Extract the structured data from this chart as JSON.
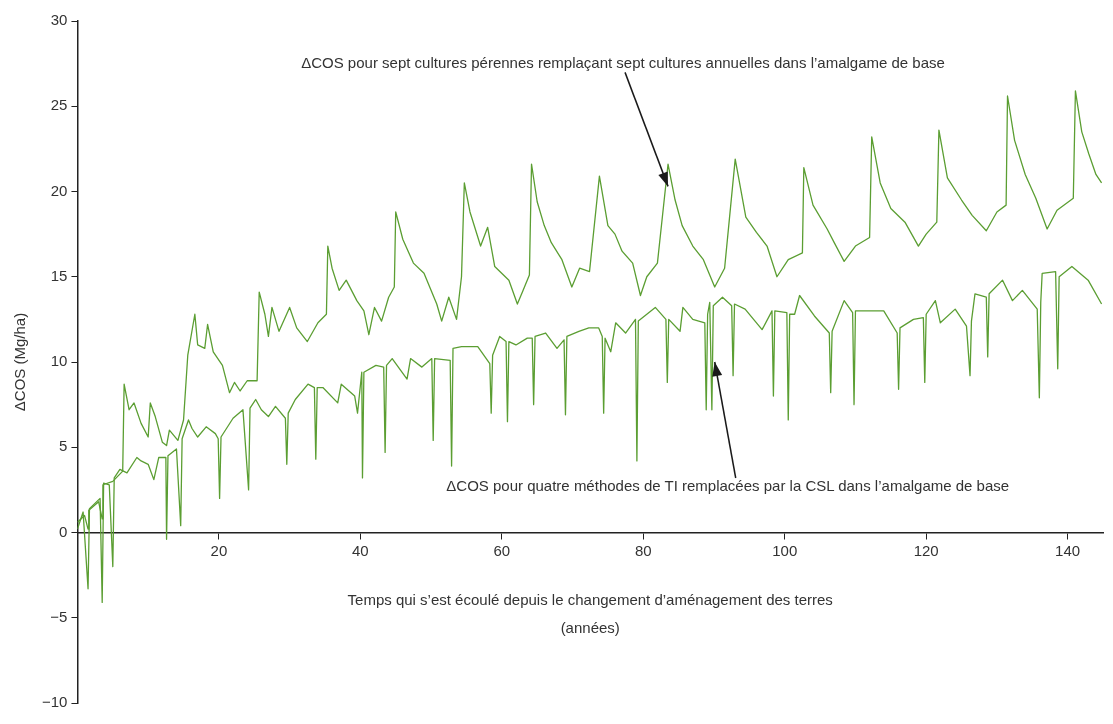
{
  "chart_data": {
    "type": "line",
    "ylabel": "ΔCOS (Mg/ha)",
    "xlabel": "Temps qui s’est écoulé depuis le changement d’aménagement des terres\n(années)",
    "xlim": [
      0,
      145
    ],
    "xticks": [
      20,
      40,
      60,
      80,
      100,
      120,
      140
    ],
    "ylim": [
      -10,
      30
    ],
    "yticks": [
      {
        "value": -10,
        "label": "−10"
      },
      {
        "value": -5,
        "label": "−5"
      },
      0,
      5,
      10,
      15,
      20,
      25,
      30
    ],
    "grid": false,
    "legend": false,
    "marker": "none",
    "annotations": [
      {
        "text": "ΔCOS pour sept cultures pérennes remplaçant sept cultures annuelles dans l’amalgame de base",
        "x": 83.5,
        "y": 20.3
      },
      {
        "text": "ΔCOS pour quatre méthodes de TI remplacées par la CSL dans l’amalgame de base",
        "x": 90.1,
        "y": 10.0
      }
    ],
    "series": [
      {
        "color": "#5b9e32",
        "x": [
          0,
          1,
          1.5,
          1.6,
          3,
          3.5,
          3.6,
          5,
          6.4,
          6.6,
          7.3,
          8,
          9,
          10,
          10.3,
          11,
          12,
          12.6,
          13,
          14.2,
          15,
          15.6,
          16.6,
          17,
          18,
          18.4,
          19.2,
          20.5,
          21.5,
          22.2,
          23,
          24,
          25.4,
          25.7,
          26.5,
          27,
          27.5,
          28.5,
          30,
          31,
          32.5,
          34,
          35.2,
          35.4,
          36,
          37,
          38,
          39.5,
          40.5,
          41.2,
          42,
          43,
          44,
          44.8,
          45,
          46,
          47.5,
          49,
          50.8,
          51.5,
          52.5,
          53.6,
          54.3,
          54.7,
          55.5,
          57,
          58,
          59,
          61,
          62.2,
          63,
          63.9,
          64.2,
          65,
          66,
          67,
          68.5,
          69.9,
          71,
          72.4,
          73.8,
          75,
          76,
          77,
          78.5,
          79.6,
          80.5,
          82,
          83.5,
          84.5,
          85.5,
          87,
          88.5,
          90.1,
          91.5,
          93,
          94.5,
          96,
          97.5,
          98.9,
          100.5,
          102.5,
          102.7,
          104,
          106,
          107,
          108.4,
          110,
          112,
          112.3,
          113.5,
          115,
          117,
          118.9,
          120,
          121.5,
          121.8,
          123,
          125,
          126.5,
          128.5,
          130,
          131.3,
          131.5,
          132.5,
          134,
          135.5,
          137.1,
          138.5,
          140.8,
          141.1,
          142,
          143,
          144,
          144.8
        ],
        "values": [
          0.6,
          1.0,
          0.2,
          1.3,
          1.8,
          0.8,
          2.8,
          3.0,
          3.6,
          8.7,
          7.2,
          7.6,
          6.4,
          5.6,
          7.6,
          6.8,
          5.3,
          5.1,
          6.0,
          5.4,
          6.6,
          10.4,
          12.8,
          11.0,
          10.8,
          12.2,
          10.6,
          9.8,
          8.2,
          8.8,
          8.3,
          8.9,
          8.9,
          14.1,
          12.8,
          11.5,
          13.2,
          11.8,
          13.2,
          12.0,
          11.2,
          12.3,
          12.8,
          16.8,
          15.5,
          14.2,
          14.8,
          13.6,
          13.0,
          11.6,
          13.2,
          12.4,
          13.8,
          14.4,
          18.8,
          17.2,
          15.8,
          15.2,
          13.4,
          12.4,
          13.8,
          12.5,
          15.0,
          20.5,
          18.8,
          16.8,
          17.9,
          15.6,
          14.8,
          13.4,
          14.2,
          15.1,
          21.6,
          19.4,
          18.0,
          17.0,
          16.0,
          14.4,
          15.5,
          15.3,
          20.9,
          18.0,
          17.5,
          16.5,
          15.8,
          13.9,
          15.0,
          15.8,
          21.6,
          19.5,
          18.0,
          16.8,
          16.0,
          14.4,
          15.5,
          21.9,
          18.5,
          17.6,
          16.8,
          15.0,
          16.0,
          16.4,
          21.4,
          19.2,
          17.8,
          17.0,
          15.9,
          16.8,
          17.3,
          23.2,
          20.5,
          19.0,
          18.2,
          16.8,
          17.5,
          18.2,
          23.6,
          20.8,
          19.5,
          18.6,
          17.7,
          18.8,
          19.2,
          25.6,
          23.0,
          21.0,
          19.6,
          17.8,
          18.9,
          19.6,
          25.9,
          23.5,
          22.2,
          21.0,
          20.5
        ]
      },
      {
        "color": "#5b9e32",
        "x": [
          0,
          0.8,
          1.5,
          1.7,
          3.2,
          3.5,
          3.7,
          4.5,
          5,
          5.2,
          6,
          7,
          8.4,
          9,
          10,
          10.8,
          11.5,
          12.5,
          12.6,
          12.8,
          14,
          14.6,
          14.8,
          15.7,
          16.2,
          17,
          18.2,
          19.5,
          19.9,
          20.1,
          20.3,
          22,
          23.4,
          24.2,
          24.4,
          25.2,
          26,
          27,
          28,
          29.4,
          29.6,
          29.8,
          30.8,
          32.6,
          33.5,
          33.7,
          33.9,
          34.7,
          36.8,
          37.3,
          39.2,
          39.6,
          40.2,
          40.3,
          40.5,
          42.2,
          43.3,
          43.5,
          43.7,
          44.5,
          46.6,
          47.1,
          48.7,
          50.1,
          50.3,
          50.5,
          52.7,
          52.9,
          53.1,
          54.3,
          56.6,
          58.3,
          58.5,
          58.7,
          59.7,
          60.6,
          60.8,
          61,
          62,
          63.6,
          64.3,
          64.5,
          64.7,
          66.2,
          67.8,
          68.8,
          69,
          69.2,
          70.9,
          72.3,
          73.7,
          74.2,
          74.4,
          74.6,
          75.4,
          76.1,
          77.5,
          78.9,
          79.1,
          79.3,
          81.7,
          83.2,
          83.4,
          83.6,
          85.2,
          85.6,
          87,
          88.7,
          88.9,
          89.1,
          89.4,
          89.7,
          89.9,
          91.2,
          92.5,
          92.7,
          92.9,
          94.4,
          96.8,
          98.2,
          98.4,
          98.6,
          100.3,
          100.5,
          100.7,
          101.4,
          102.1,
          104.2,
          106.3,
          106.5,
          106.7,
          108.4,
          109.6,
          109.8,
          110,
          110.3,
          114,
          115.9,
          116.1,
          116.3,
          118.2,
          119.6,
          119.8,
          120,
          121.3,
          122,
          124.1,
          125.7,
          126.2,
          126.4,
          126.9,
          128.5,
          128.7,
          128.9,
          130.8,
          132.2,
          133.6,
          135.7,
          136,
          136.2,
          136.4,
          138.3,
          138.6,
          138.8,
          140.6,
          142.9,
          144.8
        ],
        "values": [
          0.2,
          1.2,
          -3.3,
          1.4,
          2.0,
          -4.1,
          2.9,
          2.8,
          -2.0,
          3.2,
          3.7,
          3.5,
          4.4,
          4.2,
          4.0,
          3.1,
          4.4,
          4.4,
          -0.4,
          4.5,
          4.9,
          0.4,
          5.5,
          6.6,
          6.1,
          5.6,
          6.2,
          5.8,
          5.5,
          2.0,
          5.6,
          6.7,
          7.2,
          2.5,
          7.3,
          7.8,
          7.2,
          6.8,
          7.4,
          6.7,
          4.0,
          7.0,
          7.8,
          8.7,
          8.5,
          4.3,
          8.5,
          8.5,
          7.6,
          8.7,
          8.0,
          7.0,
          9.4,
          3.2,
          9.4,
          9.8,
          9.7,
          4.7,
          9.8,
          10.2,
          9.0,
          10.2,
          9.7,
          10.2,
          5.4,
          10.2,
          10.1,
          3.9,
          10.8,
          10.9,
          10.9,
          9.9,
          7.0,
          10.4,
          11.5,
          11.2,
          6.5,
          11.2,
          11.0,
          11.4,
          11.4,
          7.5,
          11.5,
          11.7,
          10.8,
          11.3,
          6.9,
          11.5,
          11.8,
          12.0,
          12.0,
          11.5,
          7.0,
          11.4,
          10.6,
          12.3,
          11.7,
          12.5,
          4.2,
          12.4,
          13.2,
          12.5,
          8.8,
          12.5,
          11.8,
          13.2,
          12.5,
          12.3,
          7.2,
          12.8,
          13.5,
          7.2,
          13.3,
          13.8,
          13.3,
          9.2,
          13.4,
          13.1,
          11.9,
          13.0,
          8.0,
          13.0,
          12.9,
          6.6,
          12.8,
          12.8,
          13.9,
          12.7,
          11.7,
          8.2,
          11.8,
          13.6,
          12.9,
          7.5,
          13.0,
          13.0,
          13.0,
          11.7,
          8.4,
          12.0,
          12.5,
          12.6,
          8.8,
          12.8,
          13.6,
          12.3,
          13.1,
          12.1,
          9.2,
          12.4,
          14.0,
          13.8,
          10.3,
          14.0,
          14.8,
          13.6,
          14.2,
          13.1,
          7.9,
          13.5,
          15.2,
          15.3,
          9.6,
          15.0,
          15.6,
          14.8,
          13.4
        ]
      }
    ]
  }
}
